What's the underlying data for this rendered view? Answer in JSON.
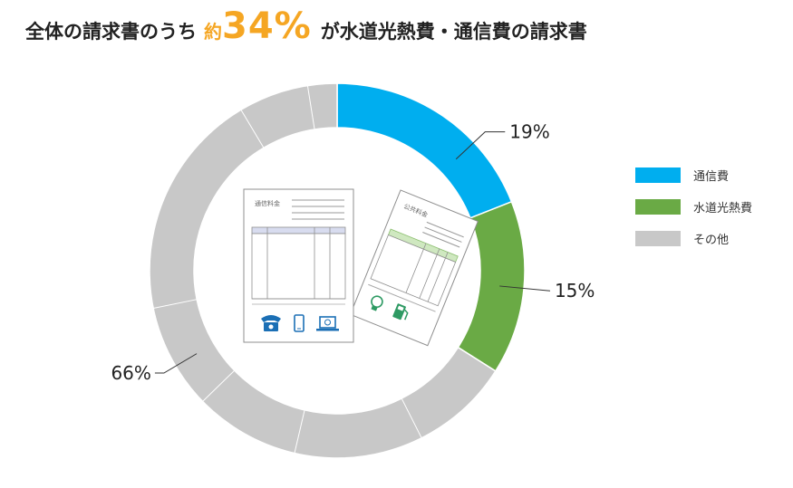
{
  "headline": {
    "prefix": "全体の請求書のうち",
    "approx": "約",
    "highlight": "34%",
    "suffix": "が水道光熱費・通信費の請求書"
  },
  "colors": {
    "communication": "#00aeef",
    "utilities": "#6aaa45",
    "other": "#c8c8c8",
    "accent": "#f5a623"
  },
  "illustration": {
    "doc1_title": "通信料金",
    "doc2_title": "公共料金",
    "doc1_icons": [
      "telephone-icon",
      "smartphone-icon",
      "laptop-icon"
    ],
    "doc2_icons": [
      "lightbulb-icon",
      "fuel-pump-icon"
    ]
  },
  "chart_data": {
    "type": "pie",
    "donut": true,
    "categories": [
      "通信費",
      "水道光熱費",
      "その他"
    ],
    "values": [
      19,
      15,
      66
    ],
    "unit": "%",
    "data_labels": [
      "19%",
      "15%",
      "66%"
    ],
    "other_segment_divisions": [
      8.5,
      11,
      9,
      9,
      19.5,
      6,
      2.5
    ],
    "legend": {
      "placement": "right",
      "entries": [
        "通信費",
        "水道光熱費",
        "その他"
      ]
    }
  }
}
